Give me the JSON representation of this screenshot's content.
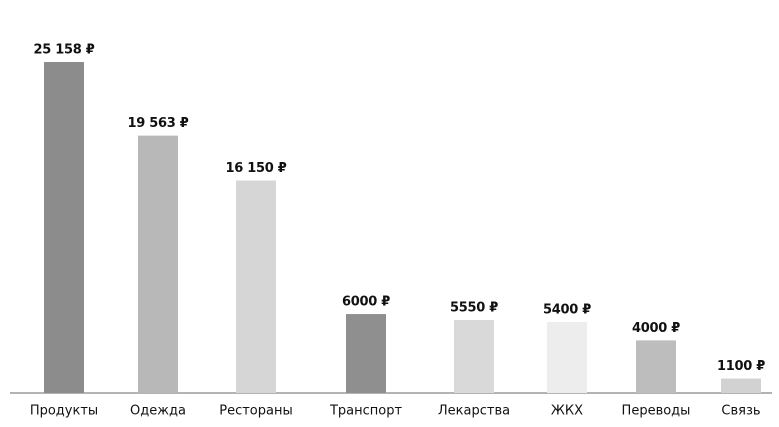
{
  "chart_data": {
    "type": "bar",
    "categories": [
      "Продукты",
      "Одежда",
      "Рестораны",
      "Транспорт",
      "Лекарства",
      "ЖКХ",
      "Переводы",
      "Связь"
    ],
    "values": [
      25158,
      19563,
      16150,
      6000,
      5550,
      5400,
      4000,
      1100
    ],
    "value_labels": [
      "25 158 ₽",
      "19 563 ₽",
      "16 150 ₽",
      "6000 ₽",
      "5550 ₽",
      "5400 ₽",
      "4000 ₽",
      "1100 ₽"
    ],
    "colors": [
      "#8c8c8c",
      "#b8b8b8",
      "#d6d6d6",
      "#8f8f8f",
      "#d9d9d9",
      "#ededed",
      "#bdbdbd",
      "#d2d2d2"
    ]
  }
}
